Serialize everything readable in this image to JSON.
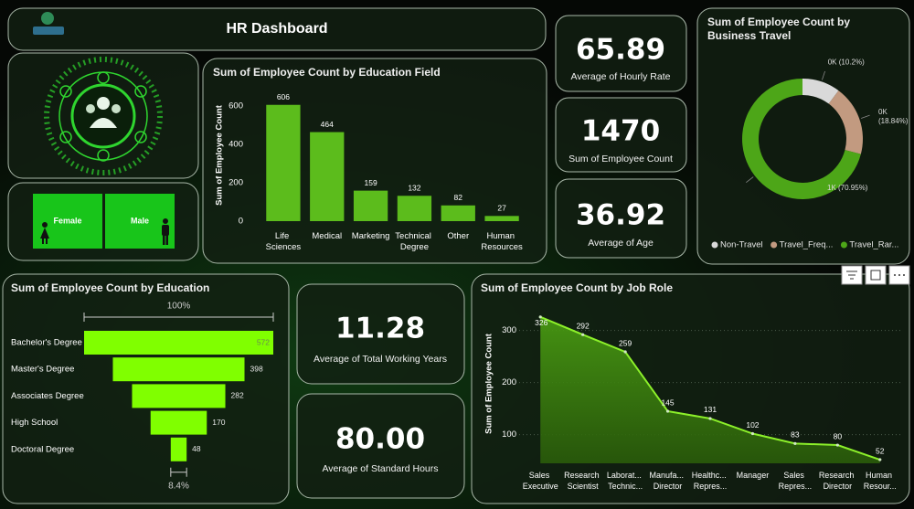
{
  "header": {
    "title": "HR Dashboard"
  },
  "gender": {
    "female": "Female",
    "male": "Male"
  },
  "kpis": [
    {
      "value": "65.89",
      "label": "Average of Hourly Rate"
    },
    {
      "value": "1470",
      "label": "Sum of Employee Count"
    },
    {
      "value": "36.92",
      "label": "Average of Age"
    },
    {
      "value": "11.28",
      "label": "Average of Total Working Years"
    },
    {
      "value": "80.00",
      "label": "Average of Standard Hours"
    }
  ],
  "chart_data": [
    {
      "type": "bar",
      "title": "Sum of Employee Count by Education Field",
      "y_label": "Sum of Employee Count",
      "categories": [
        "Life Sciences",
        "Medical",
        "Marketing",
        "Technical Degree",
        "Other",
        "Human Resources"
      ],
      "values": [
        606,
        464,
        159,
        132,
        82,
        27
      ],
      "color": "#5cbc1c",
      "ylim": [
        0,
        700
      ],
      "yticks": [
        0,
        200,
        400,
        600
      ]
    },
    {
      "type": "donut",
      "title": "Sum of Employee Count by Business Travel",
      "categories": [
        "Non-Travel",
        "Travel_Freq...",
        "Travel_Rar..."
      ],
      "values": [
        150,
        277,
        1043
      ],
      "value_labels": [
        "0K (10.2%)",
        "0K (18.84%)",
        "1K (70.95%)"
      ],
      "colors": [
        "#d9d9d9",
        "#c29a80",
        "#4da618"
      ]
    },
    {
      "type": "funnel",
      "title": "Sum of Employee Count by Education",
      "categories": [
        "Bachelor's Degree",
        "Master's Degree",
        "Associates Degree",
        "High School",
        "Doctoral Degree"
      ],
      "values": [
        572,
        398,
        282,
        170,
        48
      ],
      "color": "#80ff00",
      "top_label": "100%",
      "bottom_label": "8.4%"
    },
    {
      "type": "area",
      "title": "Sum of Employee Count by Job Role",
      "y_label": "Sum of Employee Count",
      "categories": [
        "Sales Executive",
        "Research Scientist",
        "Laborat... Technic...",
        "Manufa... Director",
        "Healthc... Repres...",
        "Manager",
        "Sales Repres...",
        "Research Director",
        "Human Resour..."
      ],
      "values": [
        326,
        292,
        259,
        145,
        131,
        102,
        83,
        80,
        52
      ],
      "color": "#8cf02a",
      "fill": "#3f8f0e",
      "ylim": [
        45,
        345
      ],
      "yticks": [
        100,
        200,
        300
      ]
    }
  ]
}
